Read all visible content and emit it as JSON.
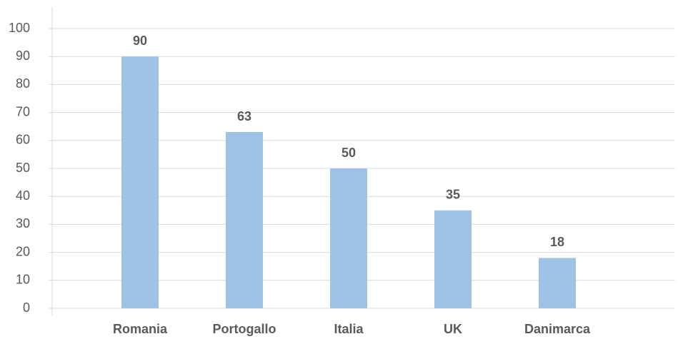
{
  "chart_data": {
    "type": "bar",
    "categories": [
      "Romania",
      "Portogallo",
      "Italia",
      "UK",
      "Danimarca"
    ],
    "values": [
      90,
      63,
      50,
      35,
      18
    ],
    "color": "#9dc3e6",
    "ylim": [
      0,
      100
    ],
    "yticks": [
      0,
      10,
      20,
      30,
      40,
      50,
      60,
      70,
      80,
      90,
      100
    ],
    "grid": true
  }
}
